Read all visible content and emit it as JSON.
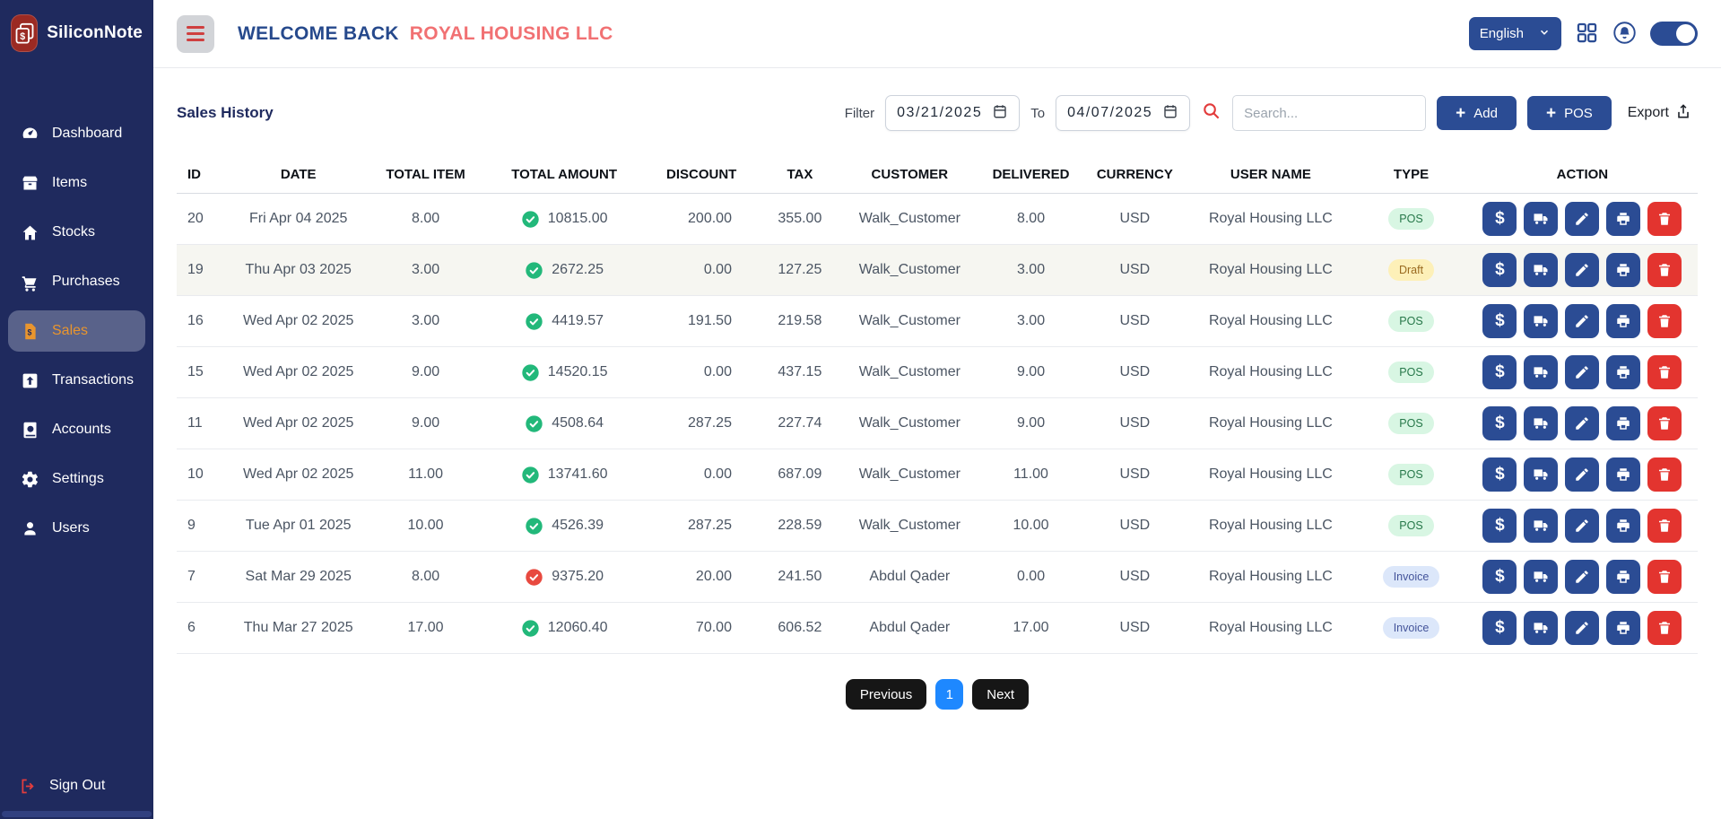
{
  "app": {
    "name": "SiliconNote"
  },
  "sidebar": {
    "items": [
      {
        "label": "Dashboard",
        "icon": "dashboard-icon",
        "active": false
      },
      {
        "label": "Items",
        "icon": "items-icon",
        "active": false
      },
      {
        "label": "Stocks",
        "icon": "stocks-icon",
        "active": false
      },
      {
        "label": "Purchases",
        "icon": "purchases-icon",
        "active": false
      },
      {
        "label": "Sales",
        "icon": "sales-icon",
        "active": true
      },
      {
        "label": "Transactions",
        "icon": "transactions-icon",
        "active": false
      },
      {
        "label": "Accounts",
        "icon": "accounts-icon",
        "active": false
      },
      {
        "label": "Settings",
        "icon": "settings-icon",
        "active": false
      },
      {
        "label": "Users",
        "icon": "users-icon",
        "active": false
      }
    ],
    "sign_out_label": "Sign Out"
  },
  "header": {
    "welcome_text": "WELCOME BACK",
    "company_name": "ROYAL HOUSING LLC",
    "language": {
      "selected": "English"
    },
    "theme_toggle_on": true
  },
  "toolbar": {
    "page_title": "Sales History",
    "filter_label": "Filter",
    "date_from": "03/21/2025",
    "to_label": "To",
    "date_to": "04/07/2025",
    "search_placeholder": "Search...",
    "add_label": "Add",
    "pos_label": "POS",
    "export_label": "Export"
  },
  "table": {
    "columns": [
      "ID",
      "DATE",
      "TOTAL ITEM",
      "TOTAL AMOUNT",
      "DISCOUNT",
      "TAX",
      "CUSTOMER",
      "DELIVERED",
      "CURRENCY",
      "USER NAME",
      "TYPE",
      "ACTION"
    ],
    "actions": [
      {
        "name": "payment",
        "icon": "dollar-icon"
      },
      {
        "name": "delivery",
        "icon": "truck-icon"
      },
      {
        "name": "edit",
        "icon": "pencil-icon"
      },
      {
        "name": "print",
        "icon": "printer-icon"
      },
      {
        "name": "delete",
        "icon": "trash-icon"
      }
    ],
    "rows": [
      {
        "id": "20",
        "date": "Fri Apr 04 2025",
        "total_item": "8.00",
        "total_amount": "10815.00",
        "paid": true,
        "discount": "200.00",
        "tax": "355.00",
        "customer": "Walk_Customer",
        "delivered": "8.00",
        "currency": "USD",
        "user_name": "Royal Housing LLC",
        "type": "POS",
        "shaded": false
      },
      {
        "id": "19",
        "date": "Thu Apr 03 2025",
        "total_item": "3.00",
        "total_amount": "2672.25",
        "paid": true,
        "discount": "0.00",
        "tax": "127.25",
        "customer": "Walk_Customer",
        "delivered": "3.00",
        "currency": "USD",
        "user_name": "Royal Housing LLC",
        "type": "Draft",
        "shaded": true
      },
      {
        "id": "16",
        "date": "Wed Apr 02 2025",
        "total_item": "3.00",
        "total_amount": "4419.57",
        "paid": true,
        "discount": "191.50",
        "tax": "219.58",
        "customer": "Walk_Customer",
        "delivered": "3.00",
        "currency": "USD",
        "user_name": "Royal Housing LLC",
        "type": "POS",
        "shaded": false
      },
      {
        "id": "15",
        "date": "Wed Apr 02 2025",
        "total_item": "9.00",
        "total_amount": "14520.15",
        "paid": true,
        "discount": "0.00",
        "tax": "437.15",
        "customer": "Walk_Customer",
        "delivered": "9.00",
        "currency": "USD",
        "user_name": "Royal Housing LLC",
        "type": "POS",
        "shaded": false
      },
      {
        "id": "11",
        "date": "Wed Apr 02 2025",
        "total_item": "9.00",
        "total_amount": "4508.64",
        "paid": true,
        "discount": "287.25",
        "tax": "227.74",
        "customer": "Walk_Customer",
        "delivered": "9.00",
        "currency": "USD",
        "user_name": "Royal Housing LLC",
        "type": "POS",
        "shaded": false
      },
      {
        "id": "10",
        "date": "Wed Apr 02 2025",
        "total_item": "11.00",
        "total_amount": "13741.60",
        "paid": true,
        "discount": "0.00",
        "tax": "687.09",
        "customer": "Walk_Customer",
        "delivered": "11.00",
        "currency": "USD",
        "user_name": "Royal Housing LLC",
        "type": "POS",
        "shaded": false
      },
      {
        "id": "9",
        "date": "Tue Apr 01 2025",
        "total_item": "10.00",
        "total_amount": "4526.39",
        "paid": true,
        "discount": "287.25",
        "tax": "228.59",
        "customer": "Walk_Customer",
        "delivered": "10.00",
        "currency": "USD",
        "user_name": "Royal Housing LLC",
        "type": "POS",
        "shaded": false
      },
      {
        "id": "7",
        "date": "Sat Mar 29 2025",
        "total_item": "8.00",
        "total_amount": "9375.20",
        "paid": false,
        "discount": "20.00",
        "tax": "241.50",
        "customer": "Abdul Qader",
        "delivered": "0.00",
        "currency": "USD",
        "user_name": "Royal Housing LLC",
        "type": "Invoice",
        "shaded": false
      },
      {
        "id": "6",
        "date": "Thu Mar 27 2025",
        "total_item": "17.00",
        "total_amount": "12060.40",
        "paid": true,
        "discount": "70.00",
        "tax": "606.52",
        "customer": "Abdul Qader",
        "delivered": "17.00",
        "currency": "USD",
        "user_name": "Royal Housing LLC",
        "type": "Invoice",
        "shaded": false
      }
    ]
  },
  "pagination": {
    "previous_label": "Previous",
    "page": "1",
    "next_label": "Next"
  },
  "colors": {
    "sidebar_navy": "#1f2a5e",
    "primary_blue": "#2b4c94",
    "company_salmon": "#f17173",
    "active_orange": "#e9952e",
    "logo_red": "#9b2a23",
    "paid_green": "#22b87a",
    "unpaid_red": "#e8493f",
    "delete_red": "#e3342f",
    "page_blue": "#1e88ff",
    "pos_badge": "#d8f6e3",
    "draft_badge": "#fdf0b8",
    "invoice_badge": "#dce7fa"
  }
}
